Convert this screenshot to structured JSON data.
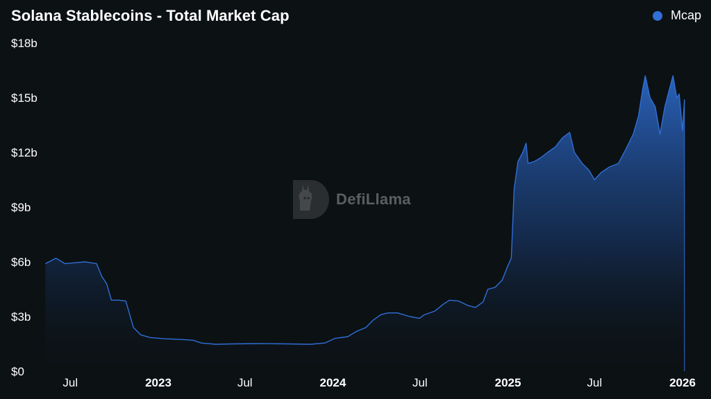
{
  "chart_data": {
    "type": "area",
    "title": "Solana Stablecoins - Total Market Cap",
    "legend": [
      "Mcap"
    ],
    "legend_placement": "top-right",
    "ylabel": "",
    "xlabel": "",
    "ylim": [
      0,
      18
    ],
    "y_unit": "b",
    "y_ticks": [
      "$0",
      "$3b",
      "$6b",
      "$9b",
      "$12b",
      "$15b",
      "$18b"
    ],
    "x_ticks": [
      {
        "label": "Jul",
        "date": "2022-07-01",
        "bold": false
      },
      {
        "label": "2023",
        "date": "2023-01-01",
        "bold": true
      },
      {
        "label": "Jul",
        "date": "2023-07-01",
        "bold": false
      },
      {
        "label": "2024",
        "date": "2024-01-01",
        "bold": true
      },
      {
        "label": "Jul",
        "date": "2024-07-01",
        "bold": false
      },
      {
        "label": "2025",
        "date": "2025-01-01",
        "bold": true
      },
      {
        "label": "Jul",
        "date": "2025-07-01",
        "bold": false
      },
      {
        "label": "2026",
        "date": "2026-01-01",
        "bold": true
      }
    ],
    "grid": false,
    "series": [
      {
        "name": "Mcap",
        "color": "#2f6fd6",
        "points": [
          [
            "2022-05-10",
            5.9
          ],
          [
            "2022-06-01",
            6.2
          ],
          [
            "2022-06-20",
            5.9
          ],
          [
            "2022-07-10",
            5.95
          ],
          [
            "2022-08-01",
            6.0
          ],
          [
            "2022-08-25",
            5.9
          ],
          [
            "2022-09-05",
            5.2
          ],
          [
            "2022-09-15",
            4.8
          ],
          [
            "2022-09-25",
            3.9
          ],
          [
            "2022-10-10",
            3.9
          ],
          [
            "2022-10-25",
            3.85
          ],
          [
            "2022-11-10",
            2.4
          ],
          [
            "2022-11-25",
            2.0
          ],
          [
            "2022-12-15",
            1.85
          ],
          [
            "2023-01-15",
            1.78
          ],
          [
            "2023-02-15",
            1.75
          ],
          [
            "2023-03-15",
            1.7
          ],
          [
            "2023-04-01",
            1.55
          ],
          [
            "2023-05-01",
            1.48
          ],
          [
            "2023-06-01",
            1.5
          ],
          [
            "2023-08-01",
            1.52
          ],
          [
            "2023-10-01",
            1.5
          ],
          [
            "2023-11-15",
            1.48
          ],
          [
            "2023-12-15",
            1.55
          ],
          [
            "2024-01-05",
            1.8
          ],
          [
            "2024-02-01",
            1.9
          ],
          [
            "2024-02-20",
            2.2
          ],
          [
            "2024-03-10",
            2.4
          ],
          [
            "2024-03-25",
            2.8
          ],
          [
            "2024-04-10",
            3.1
          ],
          [
            "2024-04-25",
            3.2
          ],
          [
            "2024-05-15",
            3.2
          ],
          [
            "2024-06-10",
            3.0
          ],
          [
            "2024-06-30",
            2.9
          ],
          [
            "2024-07-10",
            3.1
          ],
          [
            "2024-08-01",
            3.3
          ],
          [
            "2024-08-20",
            3.7
          ],
          [
            "2024-09-01",
            3.9
          ],
          [
            "2024-09-20",
            3.85
          ],
          [
            "2024-10-10",
            3.6
          ],
          [
            "2024-10-25",
            3.5
          ],
          [
            "2024-11-10",
            3.8
          ],
          [
            "2024-11-20",
            4.5
          ],
          [
            "2024-12-05",
            4.6
          ],
          [
            "2024-12-20",
            5.0
          ],
          [
            "2025-01-01",
            5.8
          ],
          [
            "2025-01-08",
            6.2
          ],
          [
            "2025-01-14",
            10.0
          ],
          [
            "2025-01-22",
            11.5
          ],
          [
            "2025-02-01",
            12.0
          ],
          [
            "2025-02-08",
            12.5
          ],
          [
            "2025-02-12",
            11.4
          ],
          [
            "2025-02-25",
            11.5
          ],
          [
            "2025-03-10",
            11.7
          ],
          [
            "2025-03-25",
            12.0
          ],
          [
            "2025-04-10",
            12.3
          ],
          [
            "2025-04-25",
            12.8
          ],
          [
            "2025-05-10",
            13.1
          ],
          [
            "2025-05-20",
            12.0
          ],
          [
            "2025-06-05",
            11.4
          ],
          [
            "2025-06-20",
            11.0
          ],
          [
            "2025-07-01",
            10.5
          ],
          [
            "2025-07-15",
            10.9
          ],
          [
            "2025-08-01",
            11.2
          ],
          [
            "2025-08-20",
            11.4
          ],
          [
            "2025-09-05",
            12.2
          ],
          [
            "2025-09-20",
            13.0
          ],
          [
            "2025-10-01",
            14.0
          ],
          [
            "2025-10-10",
            15.5
          ],
          [
            "2025-10-15",
            16.2
          ],
          [
            "2025-10-25",
            15.0
          ],
          [
            "2025-11-05",
            14.5
          ],
          [
            "2025-11-15",
            13.0
          ],
          [
            "2025-11-25",
            14.5
          ],
          [
            "2025-12-05",
            15.5
          ],
          [
            "2025-12-12",
            16.2
          ],
          [
            "2025-12-20",
            15.0
          ],
          [
            "2025-12-25",
            15.2
          ],
          [
            "2026-01-01",
            13.2
          ],
          [
            "2026-01-05",
            14.9
          ]
        ]
      }
    ]
  },
  "watermark": "DefiLlama"
}
